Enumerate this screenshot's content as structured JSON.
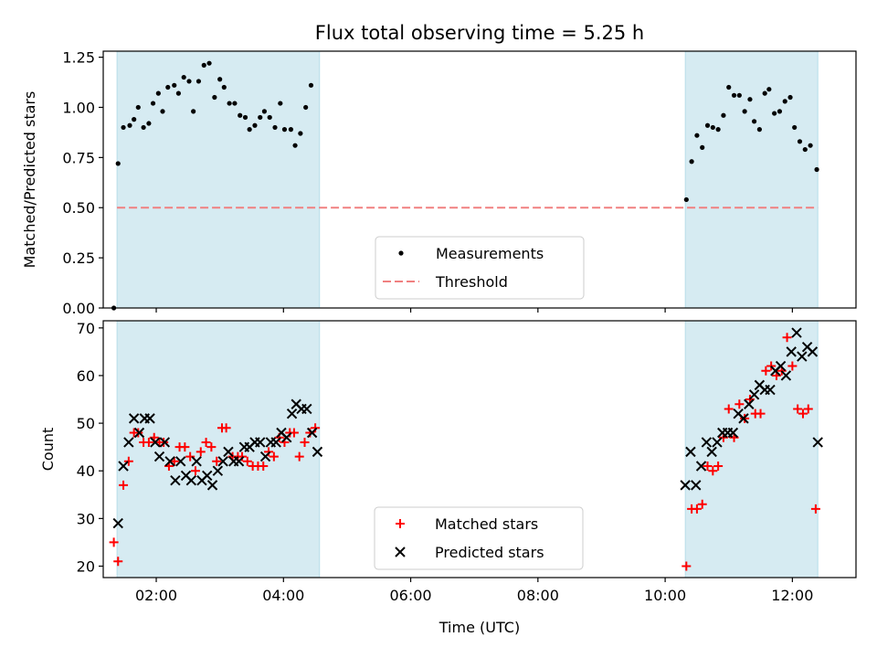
{
  "title": "Flux total observing time = 5.25 h",
  "xlabel": "Time (UTC)",
  "chart_data": [
    {
      "type": "scatter",
      "ylabel": "Matched/Predicted stars",
      "xlim": [
        "01:10",
        "13:00"
      ],
      "ylim": [
        0,
        1.28
      ],
      "x_tick_labels": [],
      "y_ticks": [
        0.0,
        0.25,
        0.5,
        0.75,
        1.0,
        1.25
      ],
      "y_tick_labels": [
        "0.00",
        "0.25",
        "0.50",
        "0.75",
        "1.00",
        "1.25"
      ],
      "shaded_spans": [
        [
          "01:23",
          "04:34"
        ],
        [
          "10:19",
          "12:24"
        ]
      ],
      "shade_color": "#add8e6",
      "threshold": {
        "name": "Threshold",
        "y": 0.5,
        "from": "01:23",
        "to": "12:24",
        "color": "#f08080",
        "style": "dashed"
      },
      "legend": {
        "position": "bottom-center",
        "entries": [
          "Measurements",
          "Threshold"
        ]
      },
      "series": [
        {
          "name": "Measurements",
          "marker": "dot",
          "color": "#000000",
          "points": [
            [
              "01:20",
              0.0
            ],
            [
              "01:24",
              0.72
            ],
            [
              "01:29",
              0.9
            ],
            [
              "01:35",
              0.91
            ],
            [
              "01:39",
              0.94
            ],
            [
              "01:43",
              1.0
            ],
            [
              "01:48",
              0.9
            ],
            [
              "01:53",
              0.92
            ],
            [
              "01:57",
              1.02
            ],
            [
              "02:02",
              1.07
            ],
            [
              "02:06",
              0.98
            ],
            [
              "02:11",
              1.1
            ],
            [
              "02:17",
              1.11
            ],
            [
              "02:21",
              1.07
            ],
            [
              "02:26",
              1.15
            ],
            [
              "02:31",
              1.13
            ],
            [
              "02:35",
              0.98
            ],
            [
              "02:40",
              1.13
            ],
            [
              "02:45",
              1.21
            ],
            [
              "02:50",
              1.22
            ],
            [
              "02:55",
              1.05
            ],
            [
              "03:00",
              1.14
            ],
            [
              "03:04",
              1.1
            ],
            [
              "03:09",
              1.02
            ],
            [
              "03:14",
              1.02
            ],
            [
              "03:19",
              0.96
            ],
            [
              "03:24",
              0.95
            ],
            [
              "03:28",
              0.89
            ],
            [
              "03:33",
              0.91
            ],
            [
              "03:38",
              0.95
            ],
            [
              "03:42",
              0.98
            ],
            [
              "03:47",
              0.95
            ],
            [
              "03:52",
              0.9
            ],
            [
              "03:57",
              1.02
            ],
            [
              "04:01",
              0.89
            ],
            [
              "04:07",
              0.89
            ],
            [
              "04:11",
              0.81
            ],
            [
              "04:16",
              0.87
            ],
            [
              "04:21",
              1.0
            ],
            [
              "04:26",
              1.11
            ],
            [
              "10:20",
              0.54
            ],
            [
              "10:25",
              0.73
            ],
            [
              "10:30",
              0.86
            ],
            [
              "10:35",
              0.8
            ],
            [
              "10:40",
              0.91
            ],
            [
              "10:45",
              0.9
            ],
            [
              "10:50",
              0.89
            ],
            [
              "10:55",
              0.96
            ],
            [
              "11:00",
              1.1
            ],
            [
              "11:05",
              1.06
            ],
            [
              "11:10",
              1.06
            ],
            [
              "11:15",
              0.98
            ],
            [
              "11:20",
              1.04
            ],
            [
              "11:24",
              0.93
            ],
            [
              "11:29",
              0.89
            ],
            [
              "11:34",
              1.07
            ],
            [
              "11:38",
              1.09
            ],
            [
              "11:43",
              0.97
            ],
            [
              "11:48",
              0.98
            ],
            [
              "11:53",
              1.03
            ],
            [
              "11:58",
              1.05
            ],
            [
              "12:02",
              0.9
            ],
            [
              "12:07",
              0.83
            ],
            [
              "12:12",
              0.79
            ],
            [
              "12:17",
              0.81
            ],
            [
              "12:23",
              0.69
            ]
          ]
        }
      ]
    },
    {
      "type": "scatter",
      "ylabel": "Count",
      "xlim": [
        "01:10",
        "13:00"
      ],
      "ylim": [
        17.6,
        71.5
      ],
      "x_ticks": [
        "02:00",
        "04:00",
        "06:00",
        "08:00",
        "10:00",
        "12:00"
      ],
      "x_tick_labels": [
        "02:00",
        "04:00",
        "06:00",
        "08:00",
        "10:00",
        "12:00"
      ],
      "y_ticks": [
        20,
        30,
        40,
        50,
        60,
        70
      ],
      "y_tick_labels": [
        "20",
        "30",
        "40",
        "50",
        "60",
        "70"
      ],
      "shaded_spans": [
        [
          "01:23",
          "04:34"
        ],
        [
          "10:19",
          "12:24"
        ]
      ],
      "shade_color": "#add8e6",
      "legend": {
        "position": "bottom-center",
        "entries": [
          "Matched stars",
          "Predicted stars"
        ]
      },
      "series": [
        {
          "name": "Matched stars",
          "marker": "plus",
          "color": "#ff0000",
          "points": [
            [
              "01:20",
              25
            ],
            [
              "01:24",
              21
            ],
            [
              "01:29",
              37
            ],
            [
              "01:34",
              42
            ],
            [
              "01:39",
              48
            ],
            [
              "01:43",
              48
            ],
            [
              "01:48",
              46
            ],
            [
              "01:53",
              46
            ],
            [
              "01:58",
              47
            ],
            [
              "02:03",
              46
            ],
            [
              "02:07",
              46
            ],
            [
              "02:12",
              41
            ],
            [
              "02:17",
              42
            ],
            [
              "02:22",
              45
            ],
            [
              "02:27",
              45
            ],
            [
              "02:32",
              43
            ],
            [
              "02:37",
              40
            ],
            [
              "02:42",
              44
            ],
            [
              "02:47",
              46
            ],
            [
              "02:52",
              45
            ],
            [
              "02:57",
              42
            ],
            [
              "03:02",
              49
            ],
            [
              "03:06",
              49
            ],
            [
              "03:12",
              43
            ],
            [
              "03:17",
              43
            ],
            [
              "03:21",
              43
            ],
            [
              "03:26",
              42
            ],
            [
              "03:31",
              41
            ],
            [
              "03:36",
              41
            ],
            [
              "03:41",
              41
            ],
            [
              "03:46",
              44
            ],
            [
              "03:51",
              43
            ],
            [
              "03:56",
              47
            ],
            [
              "04:01",
              46
            ],
            [
              "04:06",
              48
            ],
            [
              "04:10",
              48
            ],
            [
              "04:15",
              43
            ],
            [
              "04:20",
              46
            ],
            [
              "04:25",
              48
            ],
            [
              "04:30",
              49
            ],
            [
              "10:20",
              20
            ],
            [
              "10:25",
              32
            ],
            [
              "10:30",
              32
            ],
            [
              "10:35",
              33
            ],
            [
              "10:40",
              41
            ],
            [
              "10:45",
              40
            ],
            [
              "10:50",
              41
            ],
            [
              "10:55",
              47
            ],
            [
              "11:00",
              53
            ],
            [
              "11:05",
              47
            ],
            [
              "11:10",
              54
            ],
            [
              "11:15",
              51
            ],
            [
              "11:20",
              55
            ],
            [
              "11:25",
              52
            ],
            [
              "11:30",
              52
            ],
            [
              "11:35",
              61
            ],
            [
              "11:40",
              62
            ],
            [
              "11:45",
              60
            ],
            [
              "11:50",
              61
            ],
            [
              "11:55",
              68
            ],
            [
              "12:00",
              62
            ],
            [
              "12:05",
              53
            ],
            [
              "12:10",
              52
            ],
            [
              "12:15",
              53
            ],
            [
              "12:22",
              32
            ]
          ]
        },
        {
          "name": "Predicted stars",
          "marker": "x",
          "color": "#000000",
          "points": [
            [
              "01:24",
              29
            ],
            [
              "01:29",
              41
            ],
            [
              "01:34",
              46
            ],
            [
              "01:39",
              51
            ],
            [
              "01:44",
              48
            ],
            [
              "01:49",
              51
            ],
            [
              "01:54",
              51
            ],
            [
              "01:59",
              46
            ],
            [
              "02:03",
              43
            ],
            [
              "02:08",
              46
            ],
            [
              "02:13",
              42
            ],
            [
              "02:18",
              38
            ],
            [
              "02:23",
              42
            ],
            [
              "02:28",
              39
            ],
            [
              "02:33",
              38
            ],
            [
              "02:38",
              42
            ],
            [
              "02:43",
              38
            ],
            [
              "02:48",
              39
            ],
            [
              "02:53",
              37
            ],
            [
              "02:58",
              40
            ],
            [
              "03:03",
              42
            ],
            [
              "03:08",
              44
            ],
            [
              "03:13",
              42
            ],
            [
              "03:18",
              42
            ],
            [
              "03:23",
              45
            ],
            [
              "03:28",
              45
            ],
            [
              "03:33",
              46
            ],
            [
              "03:38",
              46
            ],
            [
              "03:43",
              43
            ],
            [
              "03:48",
              46
            ],
            [
              "03:53",
              46
            ],
            [
              "03:58",
              48
            ],
            [
              "04:03",
              47
            ],
            [
              "04:08",
              52
            ],
            [
              "04:12",
              54
            ],
            [
              "04:17",
              53
            ],
            [
              "04:22",
              53
            ],
            [
              "04:27",
              48
            ],
            [
              "04:32",
              44
            ],
            [
              "10:19",
              37
            ],
            [
              "10:24",
              44
            ],
            [
              "10:29",
              37
            ],
            [
              "10:34",
              41
            ],
            [
              "10:39",
              46
            ],
            [
              "10:44",
              44
            ],
            [
              "10:49",
              46
            ],
            [
              "10:54",
              48
            ],
            [
              "10:59",
              48
            ],
            [
              "11:04",
              48
            ],
            [
              "11:09",
              52
            ],
            [
              "11:14",
              51
            ],
            [
              "11:19",
              54
            ],
            [
              "11:24",
              56
            ],
            [
              "11:29",
              58
            ],
            [
              "11:34",
              57
            ],
            [
              "11:39",
              57
            ],
            [
              "11:44",
              61
            ],
            [
              "11:49",
              62
            ],
            [
              "11:54",
              60
            ],
            [
              "11:59",
              65
            ],
            [
              "12:04",
              69
            ],
            [
              "12:09",
              64
            ],
            [
              "12:14",
              66
            ],
            [
              "12:19",
              65
            ],
            [
              "12:24",
              46
            ]
          ]
        }
      ]
    }
  ]
}
